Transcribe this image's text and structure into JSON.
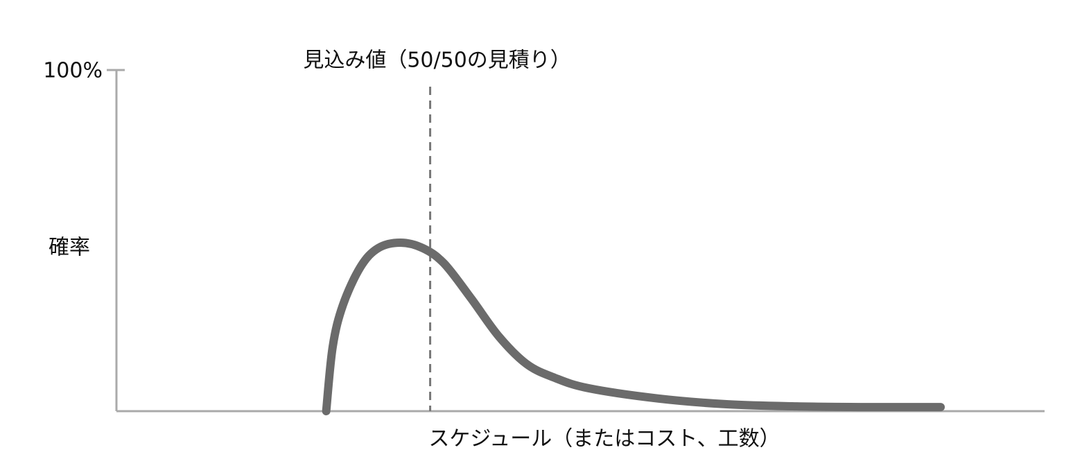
{
  "chart_data": {
    "type": "line",
    "ylabel": "確率",
    "xlabel": "スケジュール（またはコスト、工数）",
    "annotations": [
      {
        "text": "見込み値（50/50の見積り）",
        "x": 33.8
      }
    ],
    "x": [
      22.6,
      23.3,
      24.4,
      26.3,
      28.2,
      30.6,
      33.0,
      35.3,
      38.2,
      41.2,
      44.2,
      47.2,
      50.9,
      58.4,
      65.9,
      73.3,
      80.8,
      88.8
    ],
    "values": [
      0,
      18.9,
      31.1,
      42.3,
      47.8,
      49.4,
      47.8,
      43.3,
      33.1,
      21.9,
      13.8,
      9.8,
      6.7,
      3.7,
      2.0,
      1.4,
      1.2,
      1.2
    ],
    "color": "#6b6b6b",
    "xlim": [
      0,
      100
    ],
    "ylim": [
      0,
      100
    ],
    "yticks": [
      {
        "value": 100,
        "label": "100%"
      }
    ]
  }
}
